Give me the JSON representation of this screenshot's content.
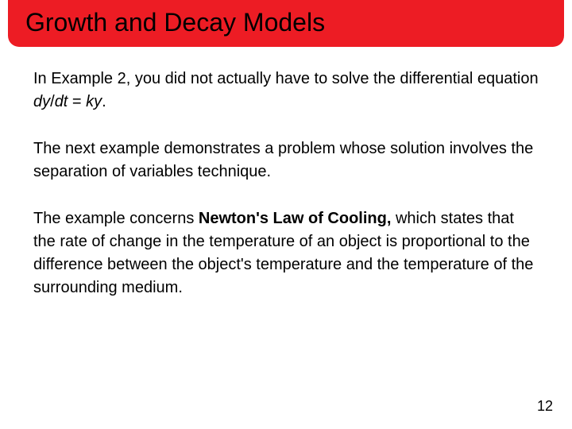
{
  "title": "Growth and Decay Models",
  "para1": {
    "t1": "In Example 2, you did not actually have to solve the differential equation ",
    "eq1": "dy",
    "slash": "/",
    "eq2": "dt",
    "t2": " = ",
    "eq3": "ky",
    "t3": "."
  },
  "para2": "The next example demonstrates a problem whose solution involves the separation of variables technique.",
  "para3": {
    "t1": "The example concerns ",
    "bold": "Newton's Law of Cooling,",
    "t2": " which states that the rate of change in the temperature of an object is proportional to the difference between the object's temperature and the temperature of the surrounding medium."
  },
  "pageNumber": "12",
  "colors": {
    "titleBg": "#ed1c24",
    "text": "#000000",
    "pageBg": "#ffffff"
  },
  "typography": {
    "titleFontSize": 32,
    "bodyFontSize": 20,
    "pageNumFontSize": 18,
    "fontFamily": "Arial"
  }
}
